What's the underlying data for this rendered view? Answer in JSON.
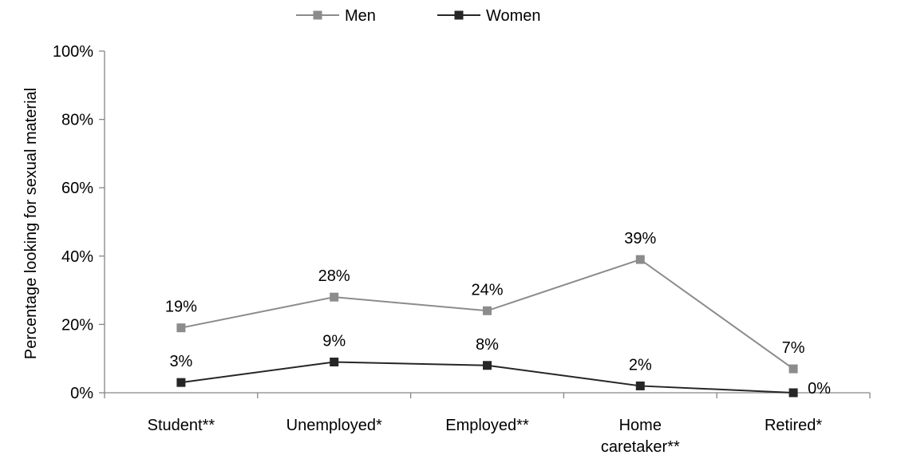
{
  "chart_data": {
    "type": "line",
    "ylabel": "Percentage looking for sexual material",
    "xlabel": "",
    "categories": [
      "Student**",
      "Unemployed*",
      "Employed**",
      "Home caretaker**",
      "Retired*"
    ],
    "category_lines": [
      [
        "Student**"
      ],
      [
        "Unemployed*"
      ],
      [
        "Employed**"
      ],
      [
        "Home",
        "caretaker**"
      ],
      [
        "Retired*"
      ]
    ],
    "ylim": [
      0,
      100
    ],
    "y_ticks": [
      0,
      20,
      40,
      60,
      80,
      100
    ],
    "y_tick_labels": [
      "0%",
      "20%",
      "40%",
      "60%",
      "80%",
      "100%"
    ],
    "grid": false,
    "legend_position": "top-center",
    "series": [
      {
        "name": "Men",
        "color": "#8c8c8c",
        "values": [
          19,
          28,
          24,
          39,
          7
        ],
        "labels": [
          "19%",
          "28%",
          "24%",
          "39%",
          "7%"
        ]
      },
      {
        "name": "Women",
        "color": "#262626",
        "values": [
          3,
          9,
          8,
          2,
          0
        ],
        "labels": [
          "3%",
          "9%",
          "8%",
          "2%",
          "0%"
        ]
      }
    ]
  }
}
